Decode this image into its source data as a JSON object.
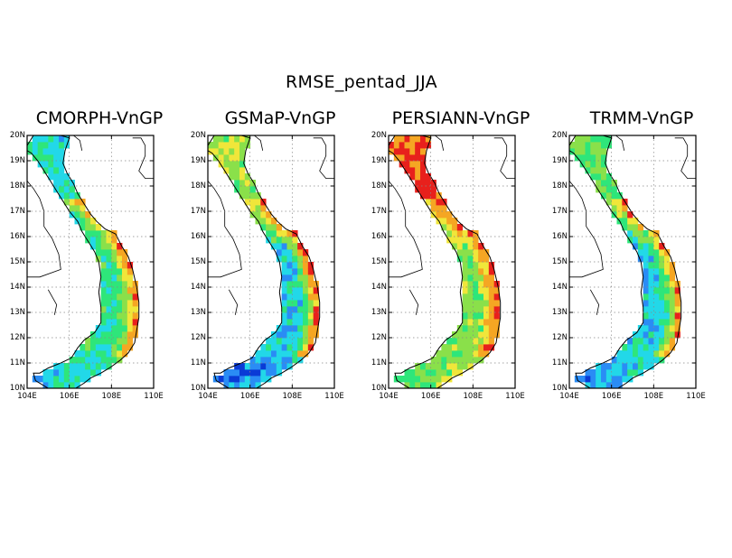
{
  "figure_title": "RMSE_pentad_JJA",
  "axis": {
    "lon_min": 104,
    "lon_max": 110,
    "lat_min": 10,
    "lat_max": 20,
    "x_ticks": [
      "104E",
      "106E",
      "108E",
      "110E"
    ],
    "x_tick_values": [
      104,
      106,
      108,
      110
    ],
    "y_ticks": [
      "10N",
      "11N",
      "12N",
      "13N",
      "14N",
      "15N",
      "16N",
      "17N",
      "18N",
      "19N",
      "20N"
    ],
    "y_tick_values": [
      10,
      11,
      12,
      13,
      14,
      15,
      16,
      17,
      18,
      19,
      20
    ],
    "grid": "dotted"
  },
  "colors": {
    "very_low": "#0a3bd6",
    "low": "#2a8cf5",
    "low_mid": "#22d8e8",
    "mid": "#2ee67a",
    "mid_high": "#8ae04a",
    "high": "#f0e63a",
    "higher": "#f5a623",
    "very_high": "#e8201c"
  },
  "panels": [
    {
      "name": "CMORPH-VnGP",
      "north_level": 0.35,
      "central_coast_level": 0.88,
      "south_level": 0.3,
      "inland_level": 0.42
    },
    {
      "name": "GSMaP-VnGP",
      "north_level": 0.6,
      "central_coast_level": 0.95,
      "south_level": 0.15,
      "inland_level": 0.3
    },
    {
      "name": "PERSIANN-VnGP",
      "north_level": 0.9,
      "central_coast_level": 0.92,
      "south_level": 0.5,
      "inland_level": 0.55
    },
    {
      "name": "TRMM-VnGP",
      "north_level": 0.5,
      "central_coast_level": 0.9,
      "south_level": 0.22,
      "inland_level": 0.3
    }
  ]
}
